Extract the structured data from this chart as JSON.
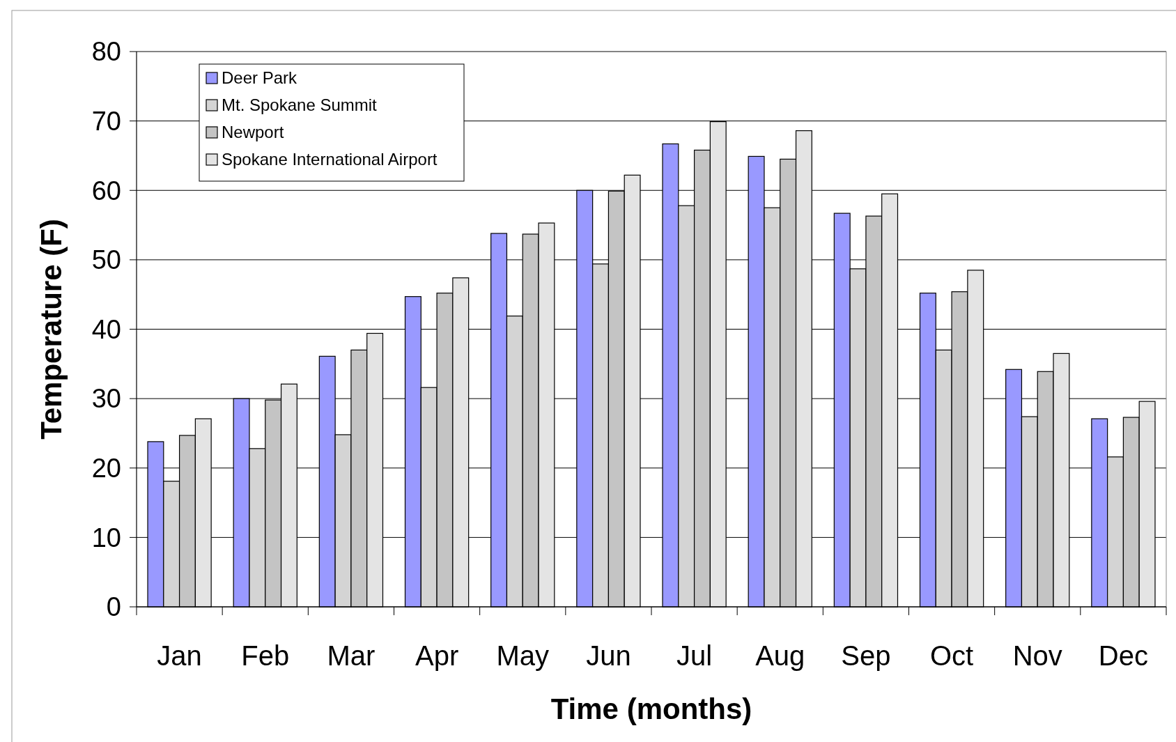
{
  "chart_data": {
    "type": "bar",
    "xlabel": "Time (months)",
    "ylabel": "Temperature (F)",
    "categories": [
      "Jan",
      "Feb",
      "Mar",
      "Apr",
      "May",
      "Jun",
      "Jul",
      "Aug",
      "Sep",
      "Oct",
      "Nov",
      "Dec"
    ],
    "series": [
      {
        "name": "Deer Park",
        "color": "#9999ff",
        "values": [
          23.8,
          30.0,
          36.1,
          44.7,
          53.8,
          60.0,
          66.7,
          64.9,
          56.7,
          45.2,
          34.2,
          27.1
        ]
      },
      {
        "name": "Mt. Spokane Summit",
        "color": "#d4d4d4",
        "values": [
          18.1,
          22.8,
          24.8,
          31.6,
          41.9,
          49.4,
          57.8,
          57.5,
          48.7,
          37.0,
          27.4,
          21.6
        ]
      },
      {
        "name": "Newport",
        "color": "#c4c4c4",
        "values": [
          24.7,
          29.8,
          37.0,
          45.2,
          53.7,
          59.9,
          65.8,
          64.5,
          56.3,
          45.4,
          33.9,
          27.3
        ]
      },
      {
        "name": "Spokane International Airport",
        "color": "#e4e4e4",
        "values": [
          27.1,
          32.1,
          39.4,
          47.4,
          55.3,
          62.2,
          69.9,
          68.6,
          59.5,
          48.5,
          36.5,
          29.6
        ]
      }
    ],
    "ylim": [
      0,
      80
    ],
    "yticks": [
      0,
      10,
      20,
      30,
      40,
      50,
      60,
      70,
      80
    ],
    "grid": "y",
    "legend": "top left"
  }
}
